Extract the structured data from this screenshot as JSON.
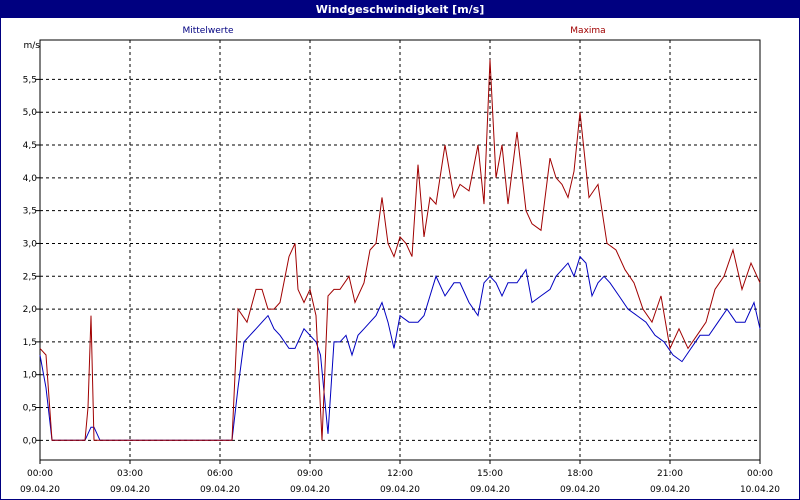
{
  "window": {
    "title": "Windgeschwindigkeit [m/s]"
  },
  "chart_data": {
    "type": "line",
    "title": "Windgeschwindigkeit [m/s]",
    "ylabel": "m/s",
    "xlabel": "",
    "ylim": [
      -0.3,
      6.1
    ],
    "xlim": [
      0,
      24
    ],
    "grid": true,
    "y_ticks": [
      "0,0",
      "0,5",
      "1,0",
      "1,5",
      "2,0",
      "2,5",
      "3,0",
      "3,5",
      "4,0",
      "4,5",
      "5,0",
      "5,5"
    ],
    "x_ticks": [
      {
        "time": "00:00",
        "date": "09.04.20"
      },
      {
        "time": "03:00",
        "date": "09.04.20"
      },
      {
        "time": "06:00",
        "date": "09.04.20"
      },
      {
        "time": "09:00",
        "date": "09.04.20"
      },
      {
        "time": "12:00",
        "date": "09.04.20"
      },
      {
        "time": "15:00",
        "date": "09.04.20"
      },
      {
        "time": "18:00",
        "date": "09.04.20"
      },
      {
        "time": "21:00",
        "date": "09.04.20"
      },
      {
        "time": "00:00",
        "date": "10.04.20"
      }
    ],
    "x_unit": "hours after 09.04.20 00:00",
    "series": [
      {
        "name": "Mittelwerte",
        "color": "#0000c0",
        "x": [
          0,
          0.2,
          0.4,
          1.0,
          1.5,
          1.7,
          1.8,
          2.0,
          3.0,
          4.0,
          5.0,
          6.0,
          6.4,
          6.6,
          6.8,
          7.0,
          7.2,
          7.4,
          7.6,
          7.8,
          8.0,
          8.3,
          8.5,
          8.8,
          9.0,
          9.2,
          9.35,
          9.6,
          9.8,
          10.0,
          10.2,
          10.4,
          10.6,
          10.8,
          11.0,
          11.2,
          11.4,
          11.6,
          11.8,
          12.0,
          12.3,
          12.6,
          12.8,
          13.0,
          13.2,
          13.5,
          13.8,
          14.0,
          14.3,
          14.6,
          14.8,
          15.0,
          15.2,
          15.4,
          15.6,
          15.9,
          16.2,
          16.4,
          16.7,
          17.0,
          17.2,
          17.4,
          17.6,
          17.8,
          18.0,
          18.2,
          18.4,
          18.6,
          18.8,
          19.0,
          19.3,
          19.6,
          19.9,
          20.2,
          20.5,
          20.8,
          21.1,
          21.4,
          21.7,
          22.0,
          22.3,
          22.6,
          22.9,
          23.2,
          23.5,
          23.8,
          24.0
        ],
        "values": [
          1.3,
          0.8,
          0.0,
          0.0,
          0.0,
          0.2,
          0.2,
          0.0,
          0.0,
          0.0,
          0.0,
          0.0,
          0.0,
          0.8,
          1.5,
          1.6,
          1.7,
          1.8,
          1.9,
          1.7,
          1.6,
          1.4,
          1.4,
          1.7,
          1.6,
          1.5,
          1.3,
          0.1,
          1.5,
          1.5,
          1.6,
          1.3,
          1.6,
          1.7,
          1.8,
          1.9,
          2.1,
          1.8,
          1.4,
          1.9,
          1.8,
          1.8,
          1.9,
          2.2,
          2.5,
          2.2,
          2.4,
          2.4,
          2.1,
          1.9,
          2.4,
          2.5,
          2.4,
          2.2,
          2.4,
          2.4,
          2.6,
          2.1,
          2.2,
          2.3,
          2.5,
          2.6,
          2.7,
          2.5,
          2.8,
          2.7,
          2.2,
          2.4,
          2.5,
          2.4,
          2.2,
          2.0,
          1.9,
          1.8,
          1.6,
          1.5,
          1.3,
          1.2,
          1.4,
          1.6,
          1.6,
          1.8,
          2.0,
          1.8,
          1.8,
          2.1,
          1.7
        ],
        "x_detail": [
          0,
          0.2,
          0.4,
          1.0,
          1.5,
          1.7,
          1.8,
          2.0,
          3.0,
          4.0,
          5.0,
          6.0,
          6.4,
          6.6,
          6.8,
          7.0,
          7.2,
          7.4,
          7.6,
          7.8,
          8.0,
          8.3,
          8.5,
          8.8,
          9.0,
          9.2,
          9.35,
          9.6,
          9.8,
          10.0,
          10.2,
          10.4,
          10.6,
          10.8,
          11.0,
          11.2,
          11.4,
          11.6,
          11.8,
          12.0,
          12.3,
          12.6,
          12.8,
          13.0,
          13.2,
          13.5,
          13.8,
          14.0,
          14.3,
          14.6,
          14.8,
          15.0,
          15.2,
          15.4,
          15.6,
          15.9,
          16.2,
          16.4,
          16.7,
          17.0,
          17.2,
          17.4,
          17.6,
          17.8,
          18.0,
          18.2,
          18.4,
          18.6,
          18.8,
          19.0,
          19.3,
          19.6,
          19.9,
          20.2,
          20.5,
          20.8,
          21.1,
          21.4,
          21.7,
          22.0,
          22.3,
          22.6,
          22.9,
          23.2,
          23.5,
          23.8,
          24.0
        ]
      },
      {
        "name": "Maxima",
        "color": "#a00000",
        "x": [
          0,
          0.2,
          0.4,
          1.0,
          1.5,
          1.6,
          1.7,
          1.8,
          2.0,
          3.0,
          4.0,
          5.0,
          6.0,
          6.4,
          6.6,
          6.9,
          7.2,
          7.4,
          7.6,
          7.8,
          8.0,
          8.3,
          8.5,
          8.6,
          8.8,
          9.0,
          9.2,
          9.4,
          9.6,
          9.8,
          10.0,
          10.3,
          10.5,
          10.8,
          11.0,
          11.2,
          11.4,
          11.6,
          11.8,
          12.0,
          12.2,
          12.4,
          12.6,
          12.8,
          13.0,
          13.2,
          13.5,
          13.8,
          14.0,
          14.3,
          14.6,
          14.8,
          15.0,
          15.2,
          15.4,
          15.6,
          15.9,
          16.2,
          16.4,
          16.7,
          17.0,
          17.2,
          17.4,
          17.6,
          17.8,
          18.0,
          18.3,
          18.6,
          18.9,
          19.2,
          19.5,
          19.8,
          20.1,
          20.4,
          20.7,
          21.0,
          21.3,
          21.6,
          21.9,
          22.2,
          22.5,
          22.8,
          23.1,
          23.4,
          23.7,
          24.0
        ],
        "values": [
          1.4,
          1.3,
          0.0,
          0.0,
          0.0,
          0.5,
          1.9,
          0.0,
          0.0,
          0.0,
          0.0,
          0.0,
          0.0,
          0.0,
          2.0,
          1.8,
          2.3,
          2.3,
          2.0,
          2.0,
          2.1,
          2.8,
          3.0,
          2.3,
          2.1,
          2.3,
          1.9,
          0.0,
          2.2,
          2.3,
          2.3,
          2.5,
          2.1,
          2.4,
          2.9,
          3.0,
          3.7,
          3.0,
          2.8,
          3.1,
          3.0,
          2.8,
          4.2,
          3.1,
          3.7,
          3.6,
          4.5,
          3.7,
          3.9,
          3.8,
          4.5,
          3.6,
          5.8,
          4.0,
          4.5,
          3.6,
          4.7,
          3.5,
          3.3,
          3.2,
          4.3,
          4.0,
          3.9,
          3.7,
          4.1,
          5.0,
          3.7,
          3.9,
          3.0,
          2.9,
          2.6,
          2.4,
          2.0,
          1.8,
          2.2,
          1.4,
          1.7,
          1.4,
          1.6,
          1.8,
          2.3,
          2.5,
          2.9,
          2.3,
          2.7,
          2.4
        ]
      }
    ]
  }
}
